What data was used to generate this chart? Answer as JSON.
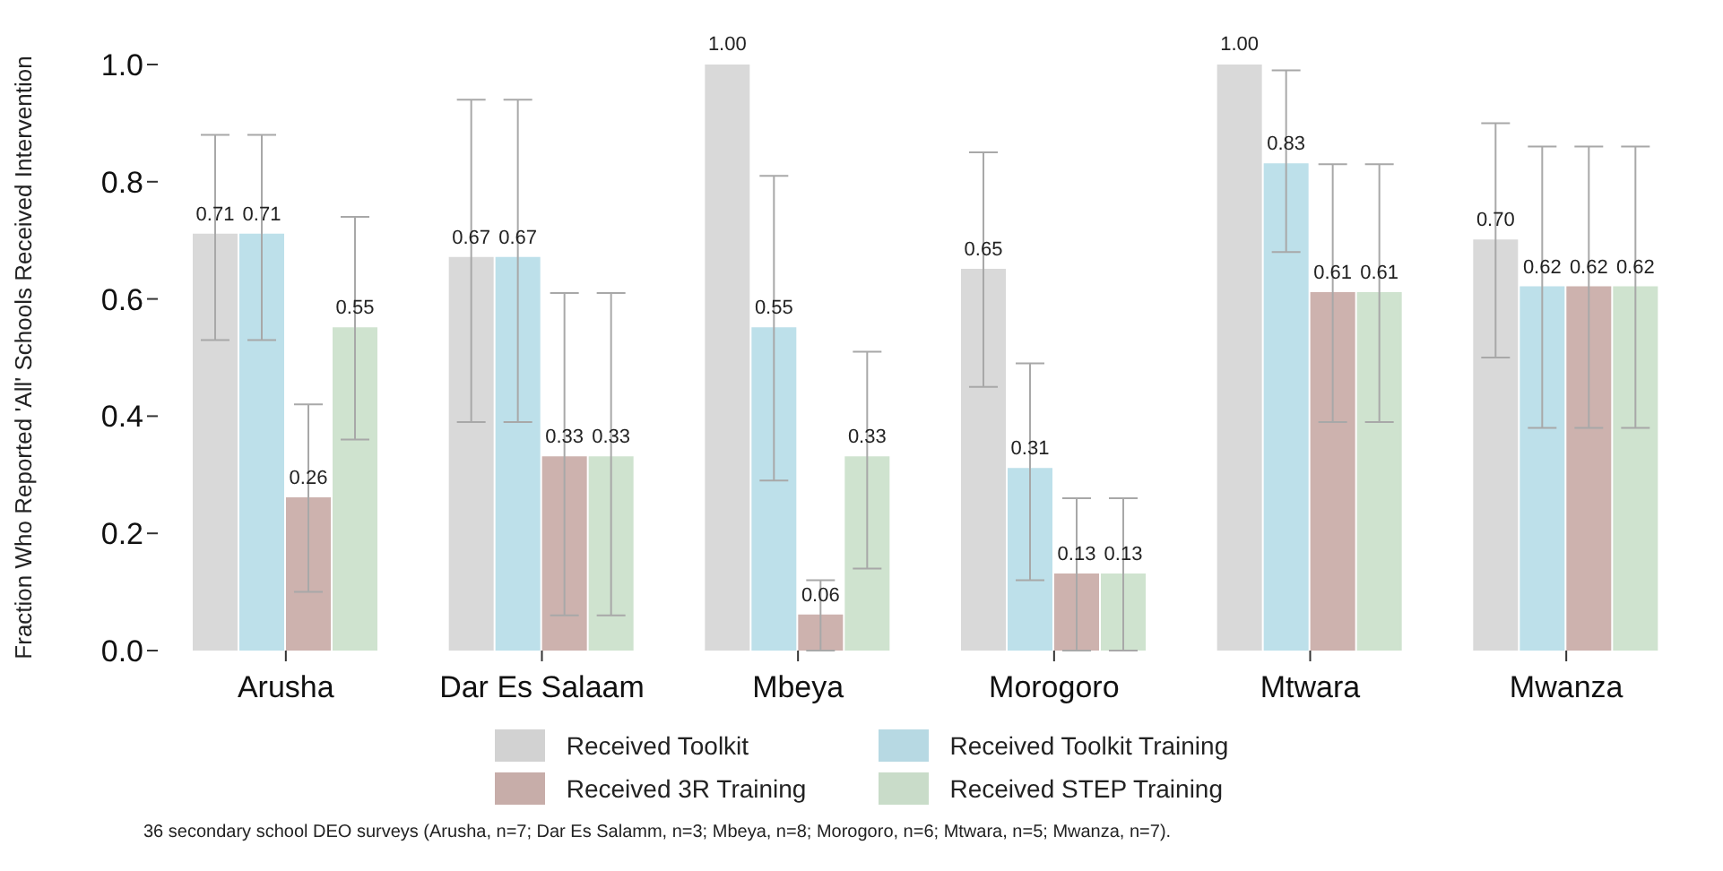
{
  "chart_data": {
    "type": "bar",
    "ylabel": "Fraction Who Reported 'All' Schools Received Intervention",
    "categories": [
      "Arusha",
      "Dar Es Salaam",
      "Mbeya",
      "Morogoro",
      "Mtwara",
      "Mwanza"
    ],
    "series": [
      {
        "name": "Received Toolkit",
        "color": "#d9d9d9",
        "values": [
          0.71,
          0.67,
          1.0,
          0.65,
          1.0,
          0.7
        ],
        "value_labels": [
          "0.71",
          "0.67",
          "1.00",
          "0.65",
          "1.00",
          "0.70"
        ],
        "errors": [
          [
            0.53,
            0.88
          ],
          [
            0.39,
            0.94
          ],
          null,
          [
            0.45,
            0.85
          ],
          null,
          [
            0.5,
            0.9
          ]
        ]
      },
      {
        "name": "Received Toolkit Training",
        "color": "#bde0ea",
        "values": [
          0.71,
          0.67,
          0.55,
          0.31,
          0.83,
          0.62
        ],
        "value_labels": [
          "0.71",
          "0.67",
          "0.55",
          "0.31",
          "0.83",
          "0.62"
        ],
        "errors": [
          [
            0.53,
            0.88
          ],
          [
            0.39,
            0.94
          ],
          [
            0.29,
            0.81
          ],
          [
            0.12,
            0.49
          ],
          [
            0.68,
            0.99
          ],
          [
            0.38,
            0.86
          ]
        ]
      },
      {
        "name": "Received 3R Training",
        "color": "#cdb2ae",
        "values": [
          0.26,
          0.33,
          0.06,
          0.13,
          0.61,
          0.62
        ],
        "value_labels": [
          "0.26",
          "0.33",
          "0.06",
          "0.13",
          "0.61",
          "0.62"
        ],
        "errors": [
          [
            0.1,
            0.42
          ],
          [
            0.06,
            0.61
          ],
          [
            0.0,
            0.12
          ],
          [
            0.0,
            0.26
          ],
          [
            0.39,
            0.83
          ],
          [
            0.38,
            0.86
          ]
        ]
      },
      {
        "name": "Received STEP Training",
        "color": "#cfe3cf",
        "values": [
          0.55,
          0.33,
          0.33,
          0.13,
          0.61,
          0.62
        ],
        "value_labels": [
          "0.55",
          "0.33",
          "0.33",
          "0.13",
          "0.61",
          "0.62"
        ],
        "errors": [
          [
            0.36,
            0.74
          ],
          [
            0.06,
            0.61
          ],
          [
            0.14,
            0.51
          ],
          [
            0.0,
            0.26
          ],
          [
            0.39,
            0.83
          ],
          [
            0.38,
            0.86
          ]
        ]
      }
    ],
    "ylim": [
      0,
      1
    ],
    "yticks": [
      {
        "value": 0,
        "label": "0.0"
      },
      0.2,
      0.4,
      0.6,
      0.8,
      {
        "value": 1,
        "label": "1.0"
      }
    ],
    "grid": false,
    "legend": "bottom",
    "annotations": [
      "36 secondary school DEO surveys (Arusha, n=7; Dar Es Salamm, n=3; Mbeya, n=8; Morogoro, n=6; Mtwara, n=5; Mwanza, n=7)."
    ]
  }
}
